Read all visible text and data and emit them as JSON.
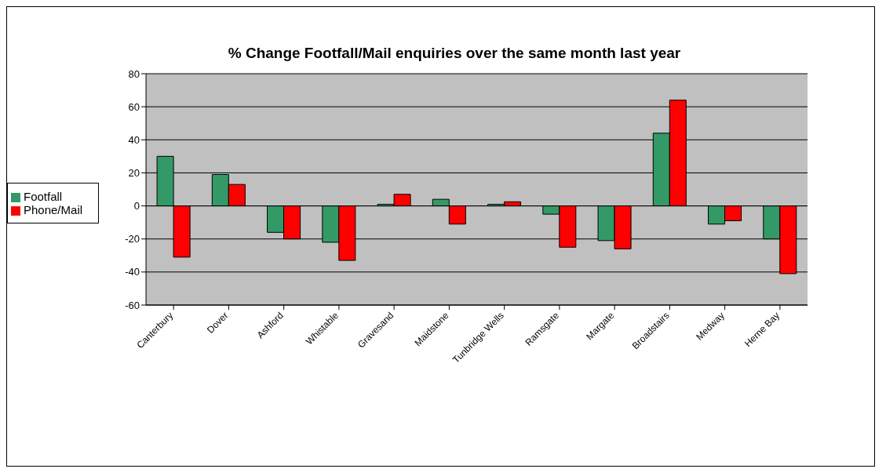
{
  "chart_data": {
    "type": "bar",
    "title": "% Change Footfall/Mail enquiries over the same month last year",
    "categories": [
      "Canterbury",
      "Dover",
      "Ashford",
      "Whistable",
      "Gravesand",
      "Maidstone",
      "Tunbridge Wells",
      "Ramsgate",
      "Margate",
      "Broadstairs",
      "Medway",
      "Herne Bay"
    ],
    "series": [
      {
        "name": "Footfall",
        "color": "#339966",
        "values": [
          30,
          19,
          -16,
          -22,
          1,
          4,
          1,
          -5,
          -21,
          44,
          -11,
          -20
        ]
      },
      {
        "name": "Phone/Mail",
        "color": "#ff0000",
        "values": [
          -31,
          13,
          -20,
          -33,
          7,
          -11,
          2.5,
          -25,
          -26,
          64,
          -9,
          -41
        ]
      }
    ],
    "ylim": [
      -60,
      80
    ],
    "yticks": [
      -60,
      -40,
      -20,
      0,
      20,
      40,
      60,
      80
    ],
    "grid": "y",
    "legend": "left"
  }
}
